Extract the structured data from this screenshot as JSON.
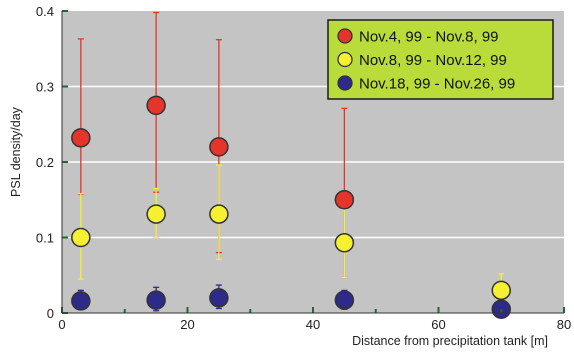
{
  "chart_data": {
    "type": "scatter",
    "xlabel": "Distance from precipitation tank [m]",
    "ylabel": "PSL density/day",
    "xlim": [
      0,
      80
    ],
    "ylim": [
      0,
      0.4
    ],
    "x_ticks": [
      "0",
      "20",
      "40",
      "60",
      "80"
    ],
    "y_ticks": [
      "0",
      "0.1",
      "0.2",
      "0.3",
      "0.4"
    ],
    "grid": "horizontal",
    "legend_position": "top-right",
    "colors": {
      "plot_background": "#c4c4c4",
      "grid": "#ffffff",
      "axis_tick": "#1f6b2a",
      "legend_background": "#b9dc3a"
    },
    "series": [
      {
        "name": "Nov.4, 99 - Nov.8, 99",
        "color": "#e5352a",
        "points": [
          {
            "x": 3,
            "y": 0.232,
            "err_low": 0.157,
            "err_high": 0.363
          },
          {
            "x": 15,
            "y": 0.275,
            "err_low": 0.16,
            "err_high": 0.398
          },
          {
            "x": 25,
            "y": 0.22,
            "err_low": 0.08,
            "err_high": 0.362
          },
          {
            "x": 45,
            "y": 0.15,
            "err_low": 0.047,
            "err_high": 0.271
          }
        ]
      },
      {
        "name": "Nov.8, 99 - Nov.12, 99",
        "color": "#f5f032",
        "points": [
          {
            "x": 3,
            "y": 0.1,
            "err_low": 0.045,
            "err_high": 0.158
          },
          {
            "x": 15,
            "y": 0.131,
            "err_low": 0.1,
            "err_high": 0.165
          },
          {
            "x": 25,
            "y": 0.131,
            "err_low": 0.071,
            "err_high": 0.196
          },
          {
            "x": 45,
            "y": 0.093,
            "err_low": 0.047,
            "err_high": 0.137
          },
          {
            "x": 70,
            "y": 0.03,
            "err_low": 0.008,
            "err_high": 0.052
          }
        ]
      },
      {
        "name": "Nov.18, 99 - Nov.26, 99",
        "color": "#2e2a8a",
        "points": [
          {
            "x": 3,
            "y": 0.016,
            "err_low": 0.005,
            "err_high": 0.03
          },
          {
            "x": 15,
            "y": 0.017,
            "err_low": 0.003,
            "err_high": 0.034
          },
          {
            "x": 25,
            "y": 0.02,
            "err_low": 0.006,
            "err_high": 0.037
          },
          {
            "x": 45,
            "y": 0.017,
            "err_low": 0.005,
            "err_high": 0.03
          },
          {
            "x": 70,
            "y": 0.005,
            "err_low": 0.001,
            "err_high": 0.008
          }
        ]
      }
    ]
  }
}
